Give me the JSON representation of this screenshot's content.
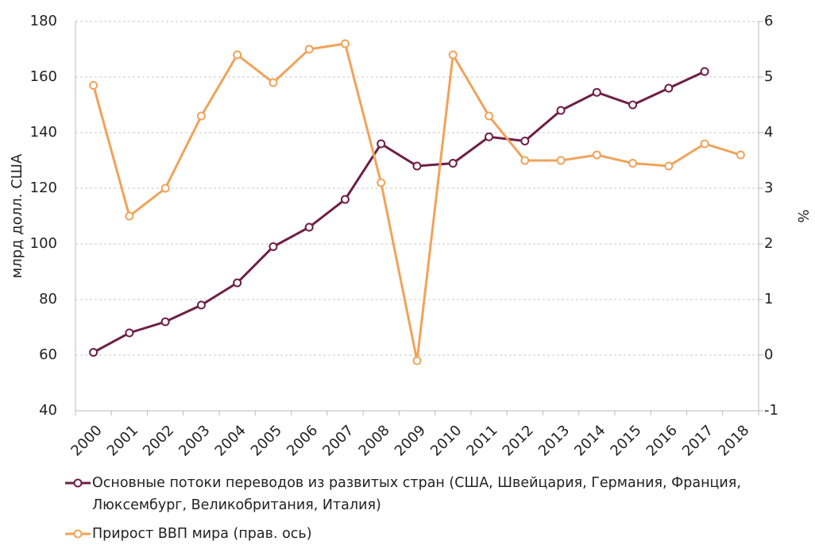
{
  "chart_data": {
    "type": "line",
    "y_label": "млрд долл. США",
    "y2_label": "%",
    "categories": [
      "2000",
      "2001",
      "2002",
      "2003",
      "2004",
      "2005",
      "2006",
      "2007",
      "2008",
      "2009",
      "2010",
      "2011",
      "2012",
      "2013",
      "2014",
      "2015",
      "2016",
      "2017",
      "2018"
    ],
    "series": [
      {
        "name": "Основные потоки переводов из развитых стран (США, Швейцария, Германия, Франция, Люксембург, Великобритания, Италия)",
        "color": "#6e1f47",
        "values": [
          61,
          68,
          72,
          78,
          86,
          99,
          106,
          116,
          136,
          128,
          129,
          138.5,
          137,
          148,
          154.5,
          150,
          156,
          162,
          null
        ]
      },
      {
        "name": "Прирост ВВП мира (прав. ось)",
        "color": "#f0a35a",
        "axis": "y2",
        "values": [
          4.85,
          2.5,
          3.0,
          4.3,
          5.4,
          4.9,
          5.5,
          5.6,
          3.1,
          -0.1,
          5.4,
          4.3,
          3.5,
          3.5,
          3.6,
          3.45,
          3.4,
          3.8,
          3.6
        ]
      }
    ],
    "ylim": [
      40,
      180
    ],
    "yticks": [
      40,
      60,
      80,
      100,
      120,
      140,
      160,
      180
    ],
    "y2lim": [
      -1,
      6
    ],
    "y2ticks": [
      -1,
      0,
      1,
      2,
      3,
      4,
      5,
      6
    ],
    "grid": true
  }
}
